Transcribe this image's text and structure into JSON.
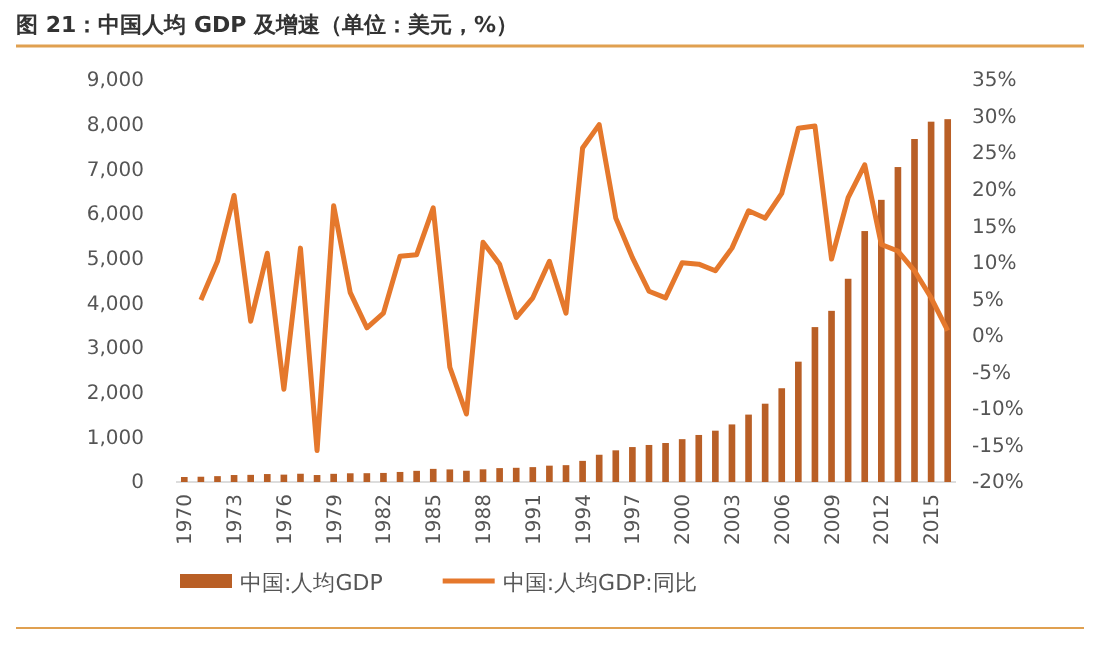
{
  "chart_data": {
    "type": "bar",
    "title": "图 21：中国人均 GDP 及增速（单位：美元，%）",
    "categories": [
      "1970",
      null,
      null,
      "1973",
      null,
      null,
      "1976",
      null,
      null,
      "1979",
      null,
      null,
      "1982",
      null,
      null,
      "1985",
      null,
      null,
      "1988",
      null,
      null,
      "1991",
      null,
      null,
      "1994",
      null,
      null,
      "1997",
      null,
      null,
      "2000",
      null,
      null,
      "2003",
      null,
      null,
      "2006",
      null,
      null,
      "2009",
      null,
      null,
      "2012",
      null,
      null,
      "2015",
      null
    ],
    "series": [
      {
        "name": "中国:人均GDP",
        "color": "#b95f26",
        "values": [
          112,
          118,
          131,
          156,
          160,
          178,
          165,
          185,
          156,
          183,
          195,
          197,
          203,
          225,
          250,
          294,
          282,
          252,
          284,
          311,
          318,
          333,
          366,
          377,
          473,
          610,
          709,
          782,
          829,
          873,
          959,
          1053,
          1149,
          1289,
          1509,
          1753,
          2099,
          2694,
          3468,
          3832,
          4550,
          5618,
          6317,
          7051,
          7679,
          8067,
          8123
        ]
      },
      {
        "name": "中国:人均GDP:同比",
        "type": "line",
        "axis": "y2",
        "color": "#e5782c",
        "values": [
          null,
          4.9,
          10.2,
          19.2,
          2.0,
          11.3,
          -7.3,
          12.0,
          -15.7,
          17.8,
          5.9,
          1.1,
          3.1,
          10.9,
          11.1,
          17.5,
          -4.3,
          -10.7,
          12.8,
          9.8,
          2.5,
          5.2,
          10.2,
          3.1,
          25.7,
          28.9,
          16.1,
          10.7,
          6.1,
          5.2,
          10.0,
          9.8,
          8.9,
          12.0,
          17.1,
          16.1,
          19.5,
          28.4,
          28.7,
          10.5,
          18.9,
          23.4,
          12.5,
          11.6,
          8.9,
          5.2,
          0.7
        ]
      }
    ],
    "ylim": [
      0,
      9000
    ],
    "yticks": [
      {
        "value": 0,
        "label": "0"
      },
      {
        "value": 1000,
        "label": "1,000"
      },
      {
        "value": 2000,
        "label": "2,000"
      },
      {
        "value": 3000,
        "label": "3,000"
      },
      {
        "value": 4000,
        "label": "4,000"
      },
      {
        "value": 5000,
        "label": "5,000"
      },
      {
        "value": 6000,
        "label": "6,000"
      },
      {
        "value": 7000,
        "label": "7,000"
      },
      {
        "value": 8000,
        "label": "8,000"
      },
      {
        "value": 9000,
        "label": "9,000"
      }
    ],
    "y2lim": [
      -20,
      35
    ],
    "y2ticks": [
      {
        "value": -20,
        "label": "-20%"
      },
      {
        "value": -15,
        "label": "-15%"
      },
      {
        "value": -10,
        "label": "-10%"
      },
      {
        "value": -5,
        "label": "-5%"
      },
      {
        "value": 0,
        "label": "0%"
      },
      {
        "value": 5,
        "label": "5%"
      },
      {
        "value": 10,
        "label": "10%"
      },
      {
        "value": 15,
        "label": "15%"
      },
      {
        "value": 20,
        "label": "20%"
      },
      {
        "value": 25,
        "label": "25%"
      },
      {
        "value": 30,
        "label": "30%"
      },
      {
        "value": 35,
        "label": "35%"
      }
    ],
    "grid": false,
    "legend": "bottom"
  }
}
